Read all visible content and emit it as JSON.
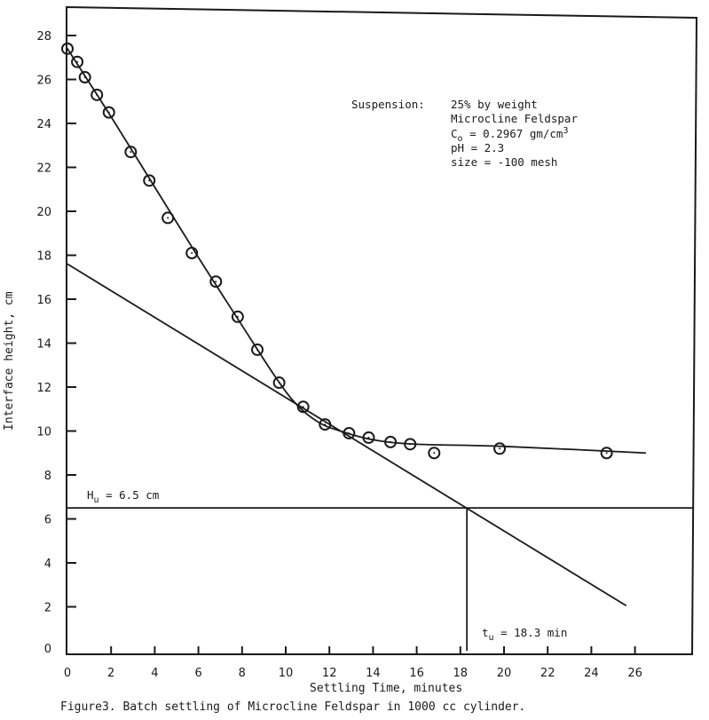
{
  "chart_data": {
    "type": "scatter",
    "title": "",
    "caption": "Figure3.  Batch settling of Microcline Feldspar in 1000 cc cylinder.",
    "xlabel": "Settling Time, minutes",
    "ylabel": "Interface height, cm",
    "xlim": [
      0,
      28
    ],
    "ylim": [
      0,
      29
    ],
    "x_ticks": [
      0,
      2,
      4,
      6,
      8,
      10,
      12,
      14,
      16,
      18,
      20,
      22,
      24,
      26
    ],
    "y_ticks": [
      0,
      2,
      4,
      6,
      8,
      10,
      12,
      14,
      16,
      18,
      20,
      22,
      24,
      26,
      28
    ],
    "grid": false,
    "legend": null,
    "series": [
      {
        "name": "Measured interface height",
        "marker": "circle-with-dot",
        "x": [
          0,
          0.45,
          0.8,
          1.35,
          1.9,
          2.9,
          3.75,
          4.6,
          5.7,
          6.8,
          7.8,
          8.7,
          9.7,
          10.8,
          11.8,
          12.9,
          13.8,
          14.8,
          15.7,
          16.8,
          19.8,
          24.7
        ],
        "y": [
          27.4,
          26.8,
          26.1,
          25.3,
          24.5,
          22.7,
          21.4,
          19.7,
          18.1,
          16.8,
          15.2,
          13.7,
          12.2,
          11.1,
          10.3,
          9.9,
          9.7,
          9.5,
          9.4,
          9.0,
          9.2,
          9.0
        ]
      },
      {
        "name": "Settling curve (smooth fit)",
        "style": "line",
        "x": [
          0,
          2,
          4,
          6,
          8,
          9.5,
          10.5,
          11.5,
          12.5,
          14,
          16,
          20,
          26.5
        ],
        "y": [
          27.4,
          24.3,
          21.1,
          17.9,
          14.8,
          12.5,
          11.2,
          10.4,
          10.0,
          9.6,
          9.4,
          9.3,
          9.0
        ]
      },
      {
        "name": "Tangent line",
        "style": "line",
        "x": [
          0,
          25.6
        ],
        "y": [
          17.6,
          2.05
        ]
      },
      {
        "name": "Hu horizontal line",
        "style": "line",
        "x": [
          0,
          28.5
        ],
        "y": [
          6.5,
          6.5
        ]
      },
      {
        "name": "tu vertical line",
        "style": "line",
        "x": [
          18.3,
          18.3
        ],
        "y": [
          0,
          6.5
        ]
      }
    ],
    "annotations": [
      {
        "text": "Hu = 6.5 cm",
        "main": "H",
        "sub": "u",
        "rest": " = 6.5 cm",
        "x": 1,
        "y": 7.2
      },
      {
        "text": "tu = 18.3 min",
        "main": "t",
        "sub": "u",
        "rest": " = 18.3 min",
        "x": 19,
        "y": 0.5
      }
    ],
    "info_box": {
      "label": "Suspension:",
      "lines": [
        "25% by weight",
        "Microcline Feldspar",
        "Co = 0.2967 gm/cm3",
        "pH = 2.3",
        "size = -100 mesh"
      ],
      "line1": "25% by weight",
      "line2": "Microcline Feldspar",
      "line3_main": "C",
      "line3_sub": "o",
      "line3_rest": " = 0.2967 gm/cm",
      "line3_sup": "3",
      "line4": "pH = 2.3",
      "line5": "size = -100 mesh"
    }
  },
  "colors": {
    "ink": "#1a1a1a",
    "background": "#ffffff"
  }
}
